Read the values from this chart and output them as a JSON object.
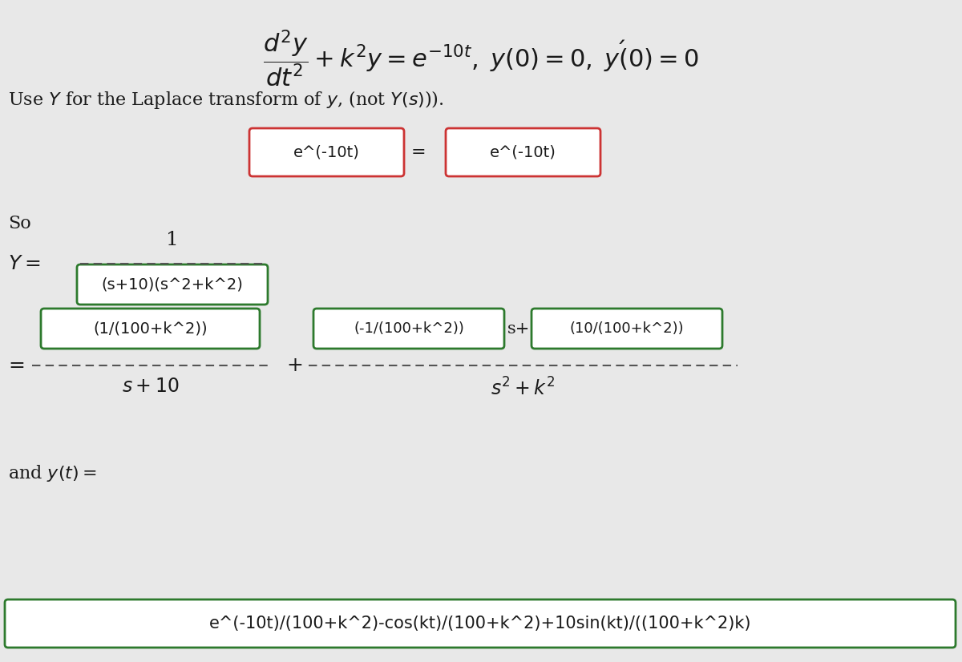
{
  "bg_color": "#e8e8e8",
  "red_color": "#cc3333",
  "green_color": "#2d7a2d",
  "text_color": "#1a1a1a",
  "title_latex": "$\\dfrac{d^2y}{dt^2} + k^2y = e^{-10t},\\, y(0) = 0,\\, y'(0) = 0$",
  "use_Y_text": "Use $\\mathit{Y}$ for the Laplace transform of $\\mathit{y}$, (not $\\mathit{Y}(s)$)).",
  "box1_text": "e^(-10t)",
  "box2_text": "e^(-10t)",
  "so_text": "So",
  "Y_label": "$\\mathit{Y} =$",
  "num1_text": "1",
  "den_box_text": "(s+10)(s^2+k^2)",
  "num_box1_text": "(1/(100+k^2))",
  "den1_latex": "$s + 10$",
  "num_box2a_text": "(-1/(100+k^2))",
  "s_plus_text": "s+",
  "num_box2b_text": "(10/(100+k^2))",
  "den2_latex": "$s^2 + k^2$",
  "and_yt_latex": "and $\\mathit{y}(t) =$",
  "answer_text": "e^(-10t)/(100+k^2)-cos(kt)/(100+k^2)+10sin(kt)/((100+k^2)k)"
}
